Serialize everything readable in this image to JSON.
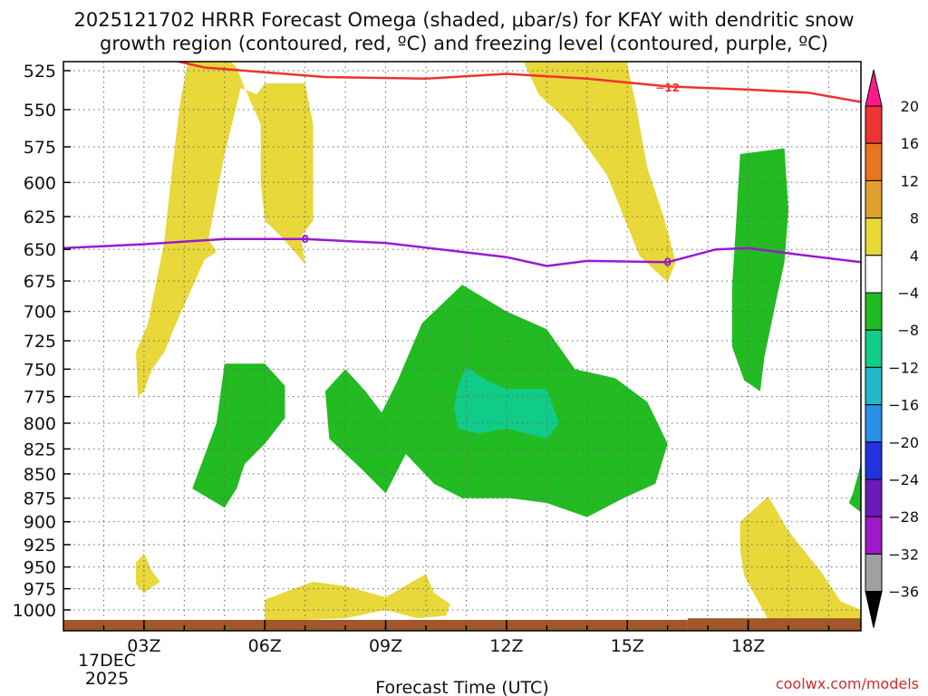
{
  "chart_data": {
    "type": "heatmap",
    "title_line1": "2025121702 HRRR Forecast Omega (shaded, μbar/s) for KFAY with dendritic snow",
    "title_line2": "growth region (contoured, red, ºC) and freezing level (contoured, purple, ºC)",
    "xlabel": "Forecast Time (UTC)",
    "credit": "coolwx.com/models",
    "date_line1": "17DEC",
    "date_line2": "2025",
    "x_range": [
      1.0,
      20.8
    ],
    "x_ticks": [
      {
        "value": 3,
        "label": "03Z"
      },
      {
        "value": 6,
        "label": "06Z"
      },
      {
        "value": 9,
        "label": "09Z"
      },
      {
        "value": 12,
        "label": "12Z"
      },
      {
        "value": 15,
        "label": "15Z"
      },
      {
        "value": 18,
        "label": "18Z"
      }
    ],
    "y_ticks": [
      525,
      550,
      575,
      600,
      625,
      650,
      675,
      700,
      725,
      750,
      775,
      800,
      825,
      850,
      875,
      900,
      925,
      950,
      975,
      1000
    ],
    "colorbar": {
      "labels": [
        "20",
        "16",
        "12",
        "8",
        "4",
        "−4",
        "−8",
        "−12",
        "−16",
        "−20",
        "−24",
        "−28",
        "−32",
        "−36"
      ],
      "colors": [
        "#ff1a8c",
        "#ee3333",
        "#e8761e",
        "#e0a030",
        "#e8d83a",
        "#ffffff",
        "#22bb22",
        "#11cc88",
        "#22b8c8",
        "#2a8ee6",
        "#2233dd",
        "#6a1ab8",
        "#a019c8",
        "#a0a0a0",
        "#000000"
      ]
    },
    "contours": [
      {
        "name": "-12 °C isotherm",
        "color": "#ee3333",
        "label": "−12",
        "label_at": [
          16.0,
          536
        ],
        "points": [
          [
            2.4,
            511
          ],
          [
            4.5,
            523
          ],
          [
            7.5,
            529
          ],
          [
            10,
            530
          ],
          [
            12,
            527
          ],
          [
            14,
            530
          ],
          [
            16,
            535
          ],
          [
            18,
            537
          ],
          [
            19.5,
            539
          ],
          [
            20.8,
            545
          ]
        ]
      },
      {
        "name": "0 °C freezing level",
        "color": "#9a1ad0",
        "label": "0",
        "label_at": [
          7.0,
          642
        ],
        "label2": "0",
        "label2_at": [
          16.0,
          660
        ],
        "points": [
          [
            1.0,
            649
          ],
          [
            3.0,
            646
          ],
          [
            5.0,
            642
          ],
          [
            7.0,
            642
          ],
          [
            9.0,
            645
          ],
          [
            12.0,
            656
          ],
          [
            13.0,
            663
          ],
          [
            14.0,
            659
          ],
          [
            16.0,
            660
          ],
          [
            17.2,
            650
          ],
          [
            18.0,
            649
          ],
          [
            19.0,
            653
          ],
          [
            20.8,
            660
          ]
        ]
      }
    ],
    "shaded_regions": [
      {
        "color": "#e8d83a",
        "omega_range": "4 to 8",
        "points": [
          [
            2.85,
            775
          ],
          [
            2.8,
            735
          ],
          [
            3.1,
            710
          ],
          [
            3.5,
            645
          ],
          [
            3.7,
            590
          ],
          [
            3.9,
            545
          ],
          [
            4.1,
            518
          ],
          [
            4.6,
            505
          ],
          [
            5.3,
            523
          ],
          [
            5.5,
            536
          ],
          [
            5.9,
            560
          ],
          [
            5.9,
            600
          ],
          [
            6.0,
            628
          ],
          [
            6.4,
            640
          ],
          [
            6.8,
            654
          ],
          [
            7.0,
            662
          ],
          [
            6.9,
            640
          ],
          [
            7.2,
            628
          ],
          [
            7.2,
            560
          ],
          [
            7.0,
            533
          ],
          [
            6.0,
            533
          ],
          [
            5.8,
            540
          ],
          [
            5.4,
            536
          ],
          [
            5.0,
            580
          ],
          [
            4.6,
            642
          ],
          [
            4.8,
            652
          ],
          [
            4.5,
            658
          ],
          [
            4.2,
            680
          ],
          [
            3.8,
            710
          ],
          [
            3.5,
            735
          ],
          [
            3.2,
            750
          ],
          [
            3.0,
            770
          ]
        ]
      },
      {
        "color": "#e8d83a",
        "omega_range": "4 to 8",
        "points": [
          [
            13.8,
            510
          ],
          [
            14.9,
            510
          ],
          [
            15.2,
            545
          ],
          [
            15.5,
            590
          ],
          [
            15.9,
            625
          ],
          [
            16.2,
            660
          ],
          [
            16.0,
            676
          ],
          [
            15.3,
            655
          ],
          [
            14.5,
            595
          ],
          [
            13.6,
            560
          ],
          [
            12.8,
            540
          ],
          [
            12.4,
            518
          ]
        ]
      },
      {
        "color": "#e8d83a",
        "omega_range": "4 to 8",
        "points": [
          [
            2.8,
            970
          ],
          [
            2.8,
            945
          ],
          [
            3.0,
            935
          ],
          [
            3.2,
            955
          ],
          [
            3.4,
            967
          ],
          [
            3.0,
            980
          ]
        ]
      },
      {
        "color": "#e8d83a",
        "omega_range": "4 to 8",
        "points": [
          [
            6.0,
            988
          ],
          [
            6.6,
            977
          ],
          [
            7.2,
            967
          ],
          [
            8.0,
            972
          ],
          [
            9.0,
            985
          ],
          [
            10.0,
            958
          ],
          [
            10.2,
            980
          ],
          [
            10.6,
            993
          ],
          [
            10.5,
            1007
          ],
          [
            9.8,
            1010
          ],
          [
            9.0,
            1000
          ],
          [
            8.0,
            1010
          ],
          [
            6.5,
            1013
          ],
          [
            6.0,
            1012
          ]
        ]
      },
      {
        "color": "#e8d83a",
        "omega_range": "4 to 8",
        "points": [
          [
            17.8,
            900
          ],
          [
            18.5,
            873
          ],
          [
            19.0,
            910
          ],
          [
            19.8,
            955
          ],
          [
            20.3,
            990
          ],
          [
            20.8,
            1000
          ],
          [
            20.8,
            1012
          ],
          [
            18.5,
            1012
          ],
          [
            17.9,
            960
          ],
          [
            17.8,
            930
          ]
        ]
      },
      {
        "color": "#22bb22",
        "omega_range": "-4 to -8",
        "points": [
          [
            4.2,
            865
          ],
          [
            4.8,
            800
          ],
          [
            5.0,
            745
          ],
          [
            6.0,
            745
          ],
          [
            6.5,
            765
          ],
          [
            6.5,
            795
          ],
          [
            6.0,
            820
          ],
          [
            5.5,
            840
          ],
          [
            5.3,
            865
          ],
          [
            5.0,
            885
          ]
        ]
      },
      {
        "color": "#22bb22",
        "omega_range": "-4 to -8",
        "points": [
          [
            7.6,
            815
          ],
          [
            7.5,
            770
          ],
          [
            8.0,
            750
          ],
          [
            8.5,
            770
          ],
          [
            8.9,
            790
          ],
          [
            9.3,
            760
          ],
          [
            9.9,
            710
          ],
          [
            10.9,
            678
          ],
          [
            12.0,
            700
          ],
          [
            13.0,
            715
          ],
          [
            13.7,
            750
          ],
          [
            14.7,
            758
          ],
          [
            15.5,
            780
          ],
          [
            16.0,
            820
          ],
          [
            15.7,
            860
          ],
          [
            14.9,
            875
          ],
          [
            14.0,
            895
          ],
          [
            13.0,
            880
          ],
          [
            12.1,
            875
          ],
          [
            10.9,
            875
          ],
          [
            10.2,
            860
          ],
          [
            9.5,
            830
          ],
          [
            9.0,
            870
          ],
          [
            8.4,
            845
          ]
        ]
      },
      {
        "color": "#22bb22",
        "omega_range": "-4 to -8",
        "points": [
          [
            17.8,
            580
          ],
          [
            18.9,
            576
          ],
          [
            19.0,
            620
          ],
          [
            18.9,
            660
          ],
          [
            18.7,
            690
          ],
          [
            18.4,
            740
          ],
          [
            18.3,
            770
          ],
          [
            17.9,
            760
          ],
          [
            17.6,
            730
          ],
          [
            17.6,
            680
          ],
          [
            17.7,
            630
          ]
        ]
      },
      {
        "color": "#22bb22",
        "omega_range": "-4 to -8",
        "points": [
          [
            20.6,
            870
          ],
          [
            20.8,
            840
          ],
          [
            20.8,
            890
          ],
          [
            20.5,
            880
          ]
        ]
      },
      {
        "color": "#11cc88",
        "omega_range": "-8 to -12",
        "points": [
          [
            10.7,
            785
          ],
          [
            10.8,
            765
          ],
          [
            11.0,
            748
          ],
          [
            11.5,
            760
          ],
          [
            12.0,
            768
          ],
          [
            13.0,
            768
          ],
          [
            13.3,
            800
          ],
          [
            13.0,
            815
          ],
          [
            12.0,
            805
          ],
          [
            11.3,
            810
          ],
          [
            10.8,
            805
          ]
        ]
      }
    ],
    "ground": [
      {
        "x1": 1.0,
        "x2": 16.5,
        "p": 1012
      },
      {
        "x1": 16.5,
        "x2": 20.8,
        "p": 1010
      }
    ]
  }
}
